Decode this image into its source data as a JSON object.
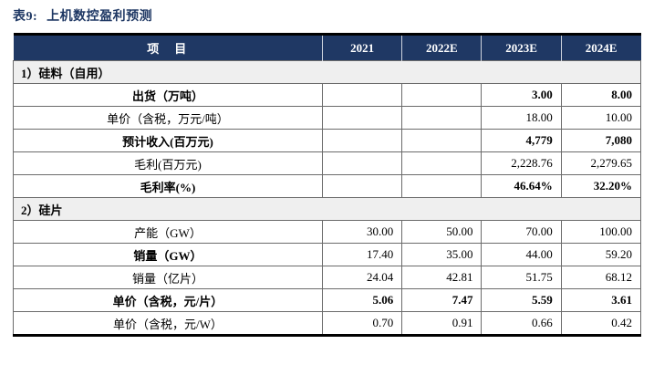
{
  "title": {
    "prefix": "表9:",
    "text": "上机数控盈利预测"
  },
  "colors": {
    "header_bg": "#1F3864",
    "header_text": "#ffffff",
    "section_bg": "#EFEFEF",
    "title_text": "#1F3864",
    "grid_border": "#6b6b6b"
  },
  "table": {
    "columns": [
      "项　目",
      "2021",
      "2022E",
      "2023E",
      "2024E"
    ],
    "rows": [
      {
        "type": "section",
        "label": "1）硅料（自用）",
        "values": []
      },
      {
        "type": "data",
        "label": "出货（万吨）",
        "label_bold": true,
        "values_bold": true,
        "values": [
          "",
          "",
          "3.00",
          "8.00"
        ]
      },
      {
        "type": "data",
        "label": "单价（含税，万元/吨）",
        "label_bold": false,
        "values_bold": false,
        "values": [
          "",
          "",
          "18.00",
          "10.00"
        ]
      },
      {
        "type": "data",
        "label": "预计收入(百万元)",
        "label_bold": true,
        "values_bold": true,
        "values": [
          "",
          "",
          "4,779",
          "7,080"
        ]
      },
      {
        "type": "data",
        "label": "毛利(百万元)",
        "label_bold": false,
        "values_bold": false,
        "values": [
          "",
          "",
          "2,228.76",
          "2,279.65"
        ]
      },
      {
        "type": "data",
        "label": "毛利率(%)",
        "label_bold": true,
        "values_bold": true,
        "values": [
          "",
          "",
          "46.64%",
          "32.20%"
        ]
      },
      {
        "type": "section",
        "label": "2）硅片",
        "values": []
      },
      {
        "type": "data",
        "label": "产能（GW）",
        "label_bold": false,
        "values_bold": false,
        "values": [
          "30.00",
          "50.00",
          "70.00",
          "100.00"
        ]
      },
      {
        "type": "data",
        "label": "销量（GW）",
        "label_bold": true,
        "values_bold": false,
        "values": [
          "17.40",
          "35.00",
          "44.00",
          "59.20"
        ]
      },
      {
        "type": "data",
        "label": "销量（亿片）",
        "label_bold": false,
        "values_bold": false,
        "values": [
          "24.04",
          "42.81",
          "51.75",
          "68.12"
        ]
      },
      {
        "type": "data",
        "label": "单价（含税，元/片）",
        "label_bold": true,
        "values_bold": true,
        "values": [
          "5.06",
          "7.47",
          "5.59",
          "3.61"
        ]
      },
      {
        "type": "data",
        "label": "单价（含税，元/W）",
        "label_bold": false,
        "values_bold": false,
        "values": [
          "0.70",
          "0.91",
          "0.66",
          "0.42"
        ]
      }
    ]
  }
}
